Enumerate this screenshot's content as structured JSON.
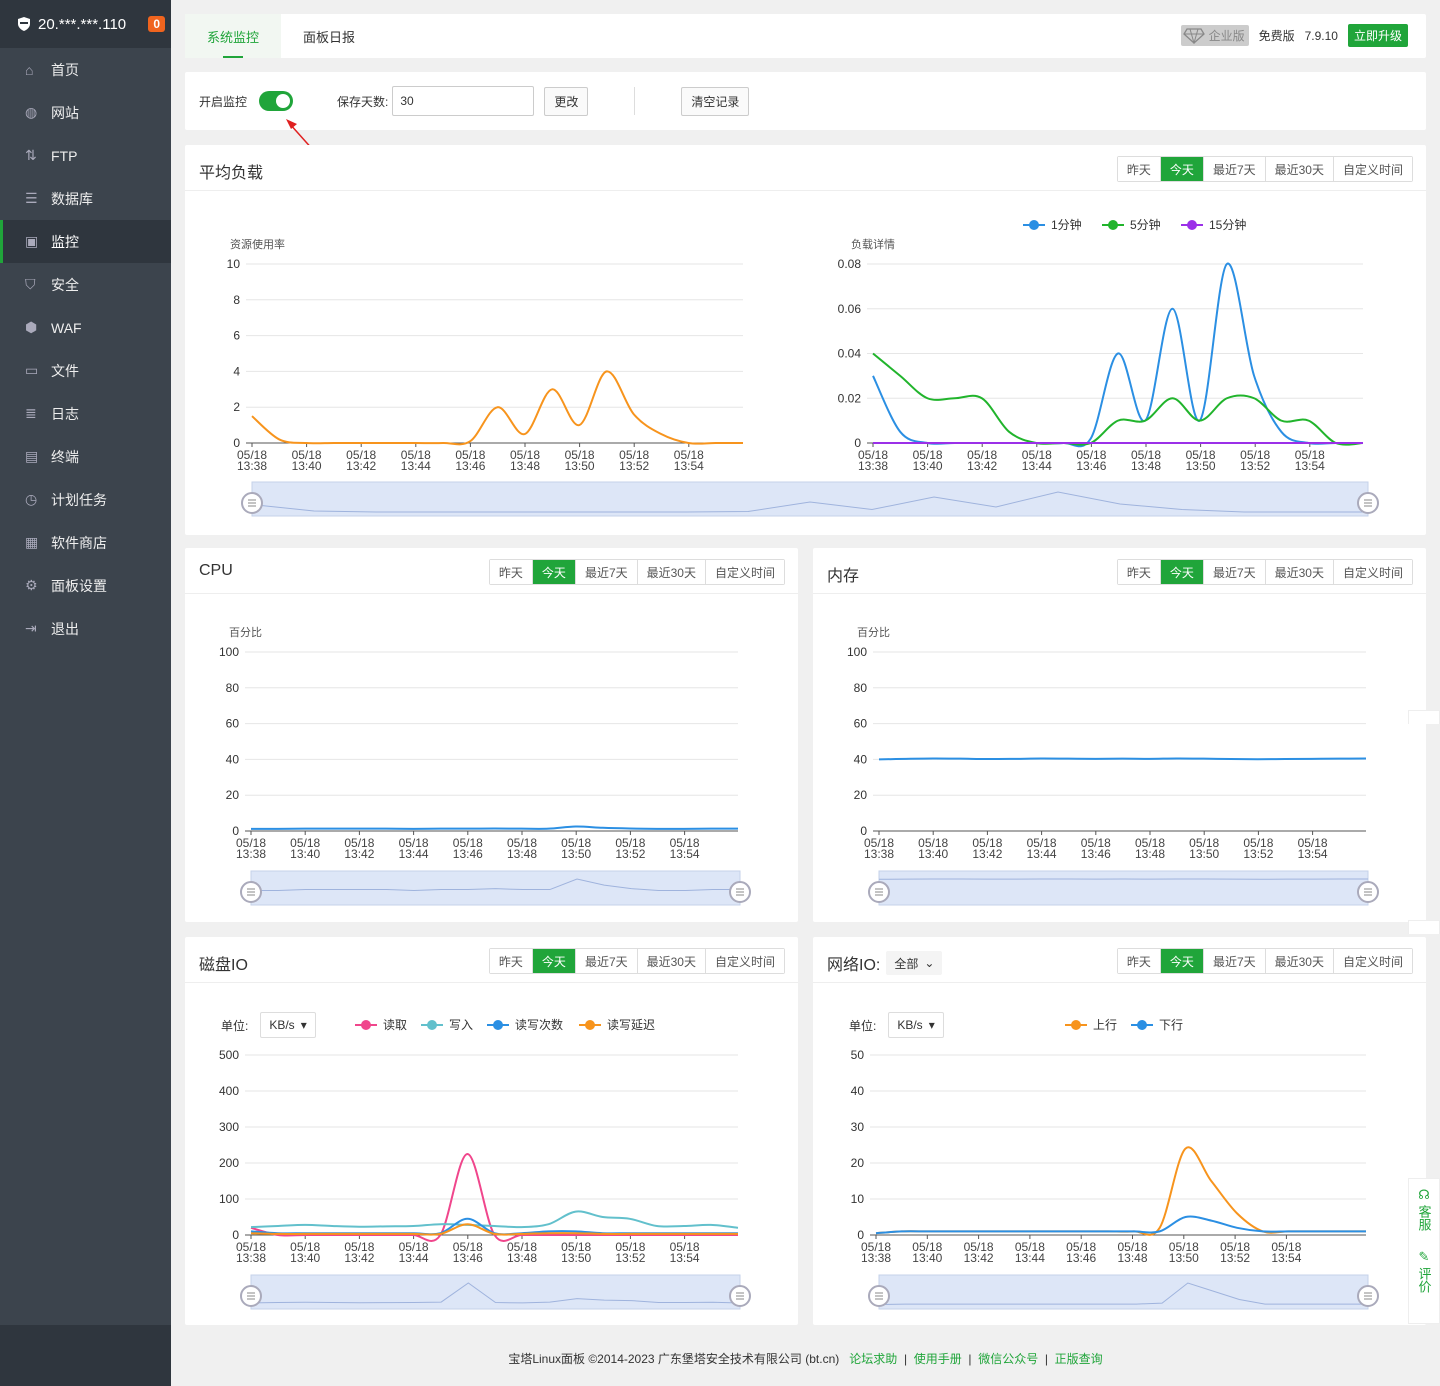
{
  "server": {
    "ip": "20.***.***.110",
    "badge": "0"
  },
  "nav": [
    {
      "label": "首页",
      "icon": "home-icon"
    },
    {
      "label": "网站",
      "icon": "globe-icon"
    },
    {
      "label": "FTP",
      "icon": "ftp-icon"
    },
    {
      "label": "数据库",
      "icon": "database-icon"
    },
    {
      "label": "监控",
      "icon": "monitor-icon",
      "active": true
    },
    {
      "label": "安全",
      "icon": "shield-icon"
    },
    {
      "label": "WAF",
      "icon": "waf-icon"
    },
    {
      "label": "文件",
      "icon": "folder-icon"
    },
    {
      "label": "日志",
      "icon": "log-icon"
    },
    {
      "label": "终端",
      "icon": "terminal-icon"
    },
    {
      "label": "计划任务",
      "icon": "clock-icon"
    },
    {
      "label": "软件商店",
      "icon": "apps-icon"
    },
    {
      "label": "面板设置",
      "icon": "gear-icon"
    },
    {
      "label": "退出",
      "icon": "logout-icon"
    }
  ],
  "top": {
    "tabs": [
      "系统监控",
      "面板日报"
    ],
    "enterprise": "企业版",
    "edition": "免费版",
    "version": "7.9.10",
    "upgrade": "立即升级"
  },
  "controls": {
    "monitor_label": "开启监控",
    "monitor_on": true,
    "days_label": "保存天数:",
    "days_value": "30",
    "change_btn": "更改",
    "clear_btn": "清空记录"
  },
  "range_options": [
    "昨天",
    "今天",
    "最近7天",
    "最近30天",
    "自定义时间"
  ],
  "range_selected": "今天",
  "times": [
    "05/18 13:38",
    "05/18 13:40",
    "05/18 13:42",
    "05/18 13:44",
    "05/18 13:46",
    "05/18 13:48",
    "05/18 13:50",
    "05/18 13:52",
    "05/18 13:54"
  ],
  "load": {
    "title": "平均负载",
    "left_label": "资源使用率",
    "right_label": "负载详情"
  },
  "cpu": {
    "title": "CPU",
    "axis_label": "百分比"
  },
  "mem": {
    "title": "内存",
    "axis_label": "百分比"
  },
  "disk": {
    "title": "磁盘IO",
    "unit_label": "单位:",
    "unit_value": "KB/s"
  },
  "net": {
    "title": "网络IO:",
    "filter_value": "全部",
    "unit_label": "单位:",
    "unit_value": "KB/s"
  },
  "side": {
    "service": "客服",
    "rate": "评价"
  },
  "footer": {
    "text": "宝塔Linux面板 ©2014-2023 广东堡塔安全技术有限公司 (bt.cn)",
    "links": [
      "论坛求助",
      "使用手册",
      "微信公众号",
      "正版查询"
    ]
  },
  "colors": {
    "accent": "#20a53a",
    "orange": "#f7941d",
    "blue": "#2b8fe3",
    "green": "#21b42c",
    "purple": "#9b30e8",
    "pink": "#f0468c",
    "cyan": "#62c0cc"
  },
  "chart_data": [
    {
      "id": "load-usage",
      "type": "line",
      "ylabel": "资源使用率",
      "ylim": [
        0,
        10
      ],
      "yticks": [
        0,
        2,
        4,
        6,
        8,
        10
      ],
      "x": [
        0,
        1,
        2,
        3,
        4,
        5,
        6,
        7,
        8,
        9,
        10,
        11,
        12,
        13,
        14,
        15,
        16,
        17,
        18
      ],
      "series": [
        {
          "color": "#f7941d",
          "values": [
            1.5,
            0.2,
            0,
            0,
            0,
            0,
            0,
            0,
            0.1,
            2,
            0.5,
            3,
            1,
            4,
            1.6,
            0.5,
            0,
            0,
            0
          ]
        }
      ]
    },
    {
      "id": "load-detail",
      "type": "line",
      "ylabel": "负载详情",
      "ylim": [
        0,
        0.08
      ],
      "yticks": [
        0,
        0.02,
        0.04,
        0.06,
        0.08
      ],
      "x": [
        0,
        1,
        2,
        3,
        4,
        5,
        6,
        7,
        8,
        9,
        10,
        11,
        12,
        13,
        14,
        15,
        16,
        17,
        18
      ],
      "series": [
        {
          "name": "1分钟",
          "color": "#2b8fe3",
          "values": [
            0.03,
            0.005,
            0,
            0,
            0,
            0,
            0,
            0,
            0.002,
            0.04,
            0.01,
            0.06,
            0.01,
            0.08,
            0.03,
            0.005,
            0,
            0,
            0
          ]
        },
        {
          "name": "5分钟",
          "color": "#21b42c",
          "values": [
            0.04,
            0.03,
            0.02,
            0.02,
            0.02,
            0.005,
            0,
            0,
            0,
            0.01,
            0.01,
            0.02,
            0.01,
            0.02,
            0.02,
            0.01,
            0.01,
            0,
            0
          ]
        },
        {
          "name": "15分钟",
          "color": "#9b30e8",
          "values": [
            0,
            0,
            0,
            0,
            0,
            0,
            0,
            0,
            0,
            0,
            0,
            0,
            0,
            0,
            0,
            0,
            0,
            0,
            0
          ]
        }
      ]
    },
    {
      "id": "cpu",
      "type": "line",
      "ylabel": "百分比",
      "ylim": [
        0,
        100
      ],
      "yticks": [
        0,
        20,
        40,
        60,
        80,
        100
      ],
      "x": [
        0,
        1,
        2,
        3,
        4,
        5,
        6,
        7,
        8,
        9,
        10,
        11,
        12,
        13,
        14,
        15,
        16,
        17,
        18
      ],
      "series": [
        {
          "color": "#2b8fe3",
          "values": [
            1.2,
            1.2,
            1.3,
            1.3,
            1.3,
            1.3,
            1.2,
            1.3,
            1.3,
            1.4,
            1.3,
            1.3,
            2.5,
            1.8,
            1.4,
            1.2,
            1.2,
            1.3,
            1.3
          ]
        }
      ]
    },
    {
      "id": "mem",
      "type": "line",
      "ylabel": "百分比",
      "ylim": [
        0,
        100
      ],
      "yticks": [
        0,
        20,
        40,
        60,
        80,
        100
      ],
      "x": [
        0,
        1,
        2,
        3,
        4,
        5,
        6,
        7,
        8,
        9,
        10,
        11,
        12,
        13,
        14,
        15,
        16,
        17,
        18
      ],
      "series": [
        {
          "color": "#2b8fe3",
          "values": [
            40,
            40.3,
            40.5,
            40.4,
            40.2,
            40.3,
            40.5,
            40.4,
            40.3,
            40.4,
            40.3,
            40.5,
            40.4,
            40.2,
            40.1,
            40.2,
            40.3,
            40.4,
            40.5
          ]
        }
      ]
    },
    {
      "id": "disk",
      "type": "line",
      "ylim": [
        0,
        500
      ],
      "yticks": [
        0,
        100,
        200,
        300,
        400,
        500
      ],
      "x": [
        0,
        1,
        2,
        3,
        4,
        5,
        6,
        7,
        8,
        9,
        10,
        11,
        12,
        13,
        14,
        15,
        16,
        17,
        18
      ],
      "series": [
        {
          "name": "读取",
          "color": "#f0468c",
          "values": [
            20,
            0,
            0,
            0,
            0,
            0,
            0,
            0,
            225,
            0,
            0,
            0,
            0,
            0,
            0,
            0,
            0,
            0,
            0
          ]
        },
        {
          "name": "写入",
          "color": "#62c0cc",
          "values": [
            22,
            25,
            28,
            25,
            23,
            24,
            25,
            30,
            28,
            25,
            22,
            30,
            65,
            50,
            45,
            25,
            25,
            28,
            20
          ]
        },
        {
          "name": "读写次数",
          "color": "#2b8fe3",
          "values": [
            10,
            5,
            5,
            5,
            5,
            5,
            5,
            5,
            45,
            5,
            5,
            10,
            10,
            5,
            5,
            5,
            5,
            5,
            5
          ]
        },
        {
          "name": "读写延迟",
          "color": "#f7941d",
          "values": [
            5,
            3,
            3,
            3,
            3,
            3,
            3,
            3,
            30,
            3,
            3,
            5,
            5,
            3,
            3,
            3,
            3,
            3,
            3
          ]
        }
      ]
    },
    {
      "id": "net",
      "type": "line",
      "ylim": [
        0,
        50
      ],
      "yticks": [
        0,
        10,
        20,
        30,
        40,
        50
      ],
      "x": [
        0,
        1,
        2,
        3,
        4,
        5,
        6,
        7,
        8,
        9,
        10,
        11,
        12,
        13,
        14,
        15,
        16,
        17,
        18,
        19
      ],
      "series": [
        {
          "name": "上行",
          "color": "#f7941d",
          "values": [
            0.5,
            1,
            1,
            1,
            1,
            1,
            1,
            1,
            1,
            1,
            1,
            2,
            24,
            15,
            6,
            1,
            1,
            1,
            1,
            1
          ]
        },
        {
          "name": "下行",
          "color": "#2b8fe3",
          "values": [
            0.5,
            1,
            1,
            1,
            1,
            1,
            1,
            1,
            1,
            1,
            1,
            1,
            5,
            4,
            2,
            1,
            1,
            1,
            1,
            1
          ]
        }
      ]
    }
  ]
}
